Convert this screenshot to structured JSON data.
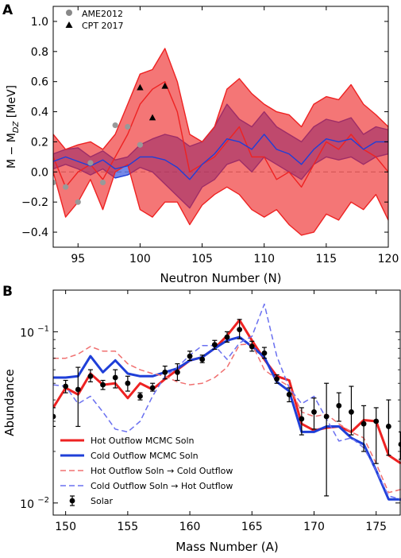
{
  "panel_a_label": "A",
  "panel_b_label": "B",
  "chart_data": [
    {
      "type": "line",
      "panel": "A",
      "xlabel": "Neutron Number (N)",
      "ylabel_main": "M − M",
      "ylabel_sub": "DZ",
      "ylabel_unit": "[MeV]",
      "xlim": [
        93,
        120
      ],
      "ylim": [
        -0.5,
        1.1
      ],
      "xticks": [
        95,
        100,
        105,
        110,
        115,
        120
      ],
      "yticks": [
        -0.4,
        -0.2,
        0.0,
        0.2,
        0.4,
        0.6,
        0.8,
        1.0
      ],
      "ytick_labels": [
        "−0.4",
        "−0.2",
        "0.0",
        "0.2",
        "0.4",
        "0.6",
        "0.8",
        "1.0"
      ],
      "colors": {
        "red": "#ee2222",
        "blue": "#1f3fd8",
        "gray": "#999999"
      },
      "legend": [
        {
          "label": "AME2012",
          "marker": "circle",
          "color": "#888888"
        },
        {
          "label": "CPT 2017",
          "marker": "triangle",
          "color": "#000000"
        }
      ],
      "x": [
        93,
        94,
        95,
        96,
        97,
        98,
        99,
        100,
        101,
        102,
        103,
        104,
        105,
        106,
        107,
        108,
        109,
        110,
        111,
        112,
        113,
        114,
        115,
        116,
        117,
        118,
        119,
        120
      ],
      "bands": [
        {
          "color": "#1f3fd8",
          "upper": [
            0.12,
            0.15,
            0.16,
            0.1,
            0.14,
            0.08,
            0.1,
            0.18,
            0.22,
            0.25,
            0.23,
            0.17,
            0.2,
            0.3,
            0.45,
            0.35,
            0.3,
            0.4,
            0.3,
            0.25,
            0.2,
            0.3,
            0.35,
            0.33,
            0.36,
            0.25,
            0.3,
            0.28
          ],
          "lower": [
            0.02,
            0.05,
            0.02,
            -0.02,
            0.02,
            -0.04,
            -0.02,
            0.03,
            0.0,
            -0.08,
            -0.16,
            -0.24,
            -0.1,
            -0.05,
            0.05,
            0.08,
            0.0,
            0.1,
            0.05,
            0.0,
            -0.05,
            0.05,
            0.1,
            0.08,
            0.1,
            0.05,
            0.1,
            0.12
          ]
        },
        {
          "color": "#ee2222",
          "upper": [
            0.25,
            0.15,
            0.18,
            0.2,
            0.15,
            0.25,
            0.45,
            0.65,
            0.68,
            0.82,
            0.6,
            0.25,
            0.2,
            0.3,
            0.55,
            0.62,
            0.52,
            0.45,
            0.4,
            0.38,
            0.3,
            0.45,
            0.5,
            0.48,
            0.58,
            0.45,
            0.38,
            0.3
          ],
          "lower": [
            0.0,
            -0.3,
            -0.2,
            -0.05,
            -0.25,
            0.0,
            0.05,
            -0.25,
            -0.3,
            -0.2,
            -0.2,
            -0.35,
            -0.22,
            -0.15,
            -0.1,
            -0.15,
            -0.25,
            -0.3,
            -0.25,
            -0.35,
            -0.42,
            -0.4,
            -0.28,
            -0.32,
            -0.2,
            -0.25,
            -0.15,
            -0.32
          ]
        }
      ],
      "series": [
        {
          "color": "#ee2222",
          "values": [
            0.1,
            -0.1,
            0.0,
            0.05,
            -0.05,
            0.1,
            0.25,
            0.45,
            0.55,
            0.6,
            0.4,
            0.0,
            0.05,
            0.1,
            0.2,
            0.3,
            0.1,
            0.1,
            -0.05,
            0.0,
            -0.1,
            0.05,
            0.2,
            0.15,
            0.25,
            0.15,
            0.1,
            0.0
          ]
        },
        {
          "color": "#1f3fd8",
          "values": [
            0.07,
            0.1,
            0.07,
            0.04,
            0.08,
            0.02,
            0.04,
            0.1,
            0.1,
            0.08,
            0.03,
            -0.05,
            0.05,
            0.12,
            0.22,
            0.2,
            0.15,
            0.25,
            0.15,
            0.12,
            0.05,
            0.15,
            0.22,
            0.2,
            0.22,
            0.15,
            0.2,
            0.2
          ]
        }
      ],
      "ame2012": {
        "x": [
          93,
          94,
          95,
          96,
          97,
          98,
          99,
          100
        ],
        "y": [
          -0.07,
          -0.1,
          -0.2,
          0.06,
          -0.07,
          0.31,
          0.3,
          0.18
        ]
      },
      "cpt2017": {
        "x": [
          100,
          101,
          102
        ],
        "y": [
          0.56,
          0.36,
          0.57
        ]
      }
    },
    {
      "type": "line",
      "panel": "B",
      "xlabel": "Mass Number (A)",
      "ylabel": "Abundance",
      "log_y": true,
      "xlim": [
        149,
        177
      ],
      "ylim": [
        0.0085,
        0.175
      ],
      "xticks": [
        150,
        155,
        160,
        165,
        170,
        175
      ],
      "yticks_major": [
        {
          "value": 0.01,
          "base": "10",
          "exp": "−2"
        },
        {
          "value": 0.1,
          "base": "10",
          "exp": "−1"
        }
      ],
      "yticks_minor": [
        0.02,
        0.03,
        0.04,
        0.05,
        0.06,
        0.07,
        0.08,
        0.09
      ],
      "legend_position": "lower-left",
      "x": [
        149,
        150,
        151,
        152,
        153,
        154,
        155,
        156,
        157,
        158,
        159,
        160,
        161,
        162,
        163,
        164,
        165,
        166,
        167,
        168,
        169,
        170,
        171,
        172,
        173,
        174,
        175,
        176,
        177
      ],
      "series": [
        {
          "name": "Hot Outflow MCMC Soln",
          "color": "#ee2222",
          "style": "solid",
          "width": 3,
          "values": [
            0.036,
            0.047,
            0.043,
            0.057,
            0.049,
            0.05,
            0.041,
            0.05,
            0.046,
            0.053,
            0.06,
            0.068,
            0.071,
            0.08,
            0.095,
            0.117,
            0.089,
            0.069,
            0.055,
            0.052,
            0.029,
            0.0265,
            0.0275,
            0.028,
            0.026,
            0.0305,
            0.03,
            0.019,
            0.017
          ]
        },
        {
          "name": "Cold Outflow MCMC Soln",
          "color": "#1f3fd8",
          "style": "solid",
          "width": 3,
          "values": [
            0.054,
            0.054,
            0.055,
            0.072,
            0.058,
            0.068,
            0.057,
            0.055,
            0.055,
            0.058,
            0.061,
            0.068,
            0.071,
            0.08,
            0.089,
            0.093,
            0.082,
            0.071,
            0.051,
            0.045,
            0.026,
            0.026,
            0.028,
            0.028,
            0.024,
            0.022,
            0.0155,
            0.0105,
            0.0105
          ]
        },
        {
          "name": "Hot Outflow Soln → Cold Outflow",
          "color": "#f07070",
          "style": "dash",
          "width": 1.5,
          "values": [
            0.07,
            0.07,
            0.074,
            0.082,
            0.077,
            0.077,
            0.065,
            0.06,
            0.057,
            0.055,
            0.051,
            0.049,
            0.05,
            0.054,
            0.062,
            0.084,
            0.085,
            0.06,
            0.053,
            0.048,
            0.034,
            0.032,
            0.033,
            0.029,
            0.026,
            0.024,
            0.017,
            0.0115,
            0.012
          ]
        },
        {
          "name": "Cold Outflow Soln → Hot Outflow",
          "color": "#6a70f0",
          "style": "dash",
          "width": 1.5,
          "values": [
            0.049,
            0.048,
            0.038,
            0.042,
            0.034,
            0.027,
            0.026,
            0.03,
            0.042,
            0.055,
            0.062,
            0.073,
            0.083,
            0.083,
            0.069,
            0.086,
            0.094,
            0.145,
            0.072,
            0.047,
            0.038,
            0.042,
            0.031,
            0.023,
            0.024,
            0.021,
            0.0155,
            0.011,
            0.0105
          ]
        }
      ],
      "solar": {
        "name": "Solar",
        "color": "#000000",
        "x": [
          149,
          150,
          151,
          152,
          153,
          154,
          155,
          156,
          157,
          158,
          159,
          160,
          161,
          162,
          163,
          164,
          165,
          166,
          167,
          168,
          169,
          170,
          171,
          172,
          173,
          174,
          175,
          176,
          177
        ],
        "y": [
          0.032,
          0.048,
          0.046,
          0.055,
          0.049,
          0.054,
          0.05,
          0.042,
          0.047,
          0.058,
          0.058,
          0.072,
          0.069,
          0.084,
          0.093,
          0.103,
          0.082,
          0.075,
          0.053,
          0.043,
          0.031,
          0.034,
          0.032,
          0.037,
          0.034,
          0.029,
          0.03,
          0.028,
          0.022
        ],
        "lo": [
          0.028,
          0.044,
          0.028,
          0.051,
          0.046,
          0.047,
          0.045,
          0.04,
          0.045,
          0.053,
          0.052,
          0.068,
          0.066,
          0.079,
          0.087,
          0.091,
          0.077,
          0.07,
          0.05,
          0.039,
          0.025,
          0.027,
          0.011,
          0.03,
          0.025,
          0.02,
          0.017,
          0.019,
          0.018
        ],
        "hi": [
          0.036,
          0.052,
          0.062,
          0.06,
          0.052,
          0.06,
          0.055,
          0.044,
          0.05,
          0.063,
          0.065,
          0.077,
          0.073,
          0.089,
          0.1,
          0.118,
          0.088,
          0.081,
          0.056,
          0.047,
          0.036,
          0.041,
          0.05,
          0.044,
          0.048,
          0.037,
          0.036,
          0.04,
          0.026
        ]
      }
    }
  ]
}
